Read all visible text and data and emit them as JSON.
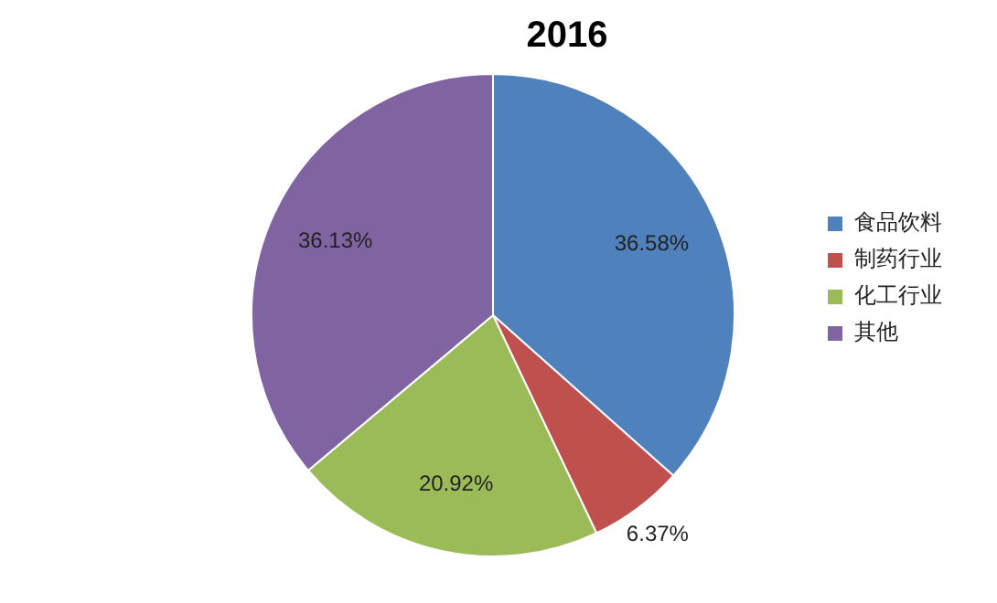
{
  "chart_data": {
    "type": "pie",
    "title": "2016",
    "categories": [
      "食品饮料",
      "制药行业",
      "化工行业",
      "其他"
    ],
    "values": [
      36.58,
      6.37,
      20.92,
      36.13
    ],
    "colors": [
      "#4f81bd",
      "#c0504d",
      "#9bbb59",
      "#8064a2"
    ],
    "value_labels": [
      "36.58%",
      "6.37%",
      "20.92%",
      "36.13%"
    ],
    "legend": "right"
  }
}
